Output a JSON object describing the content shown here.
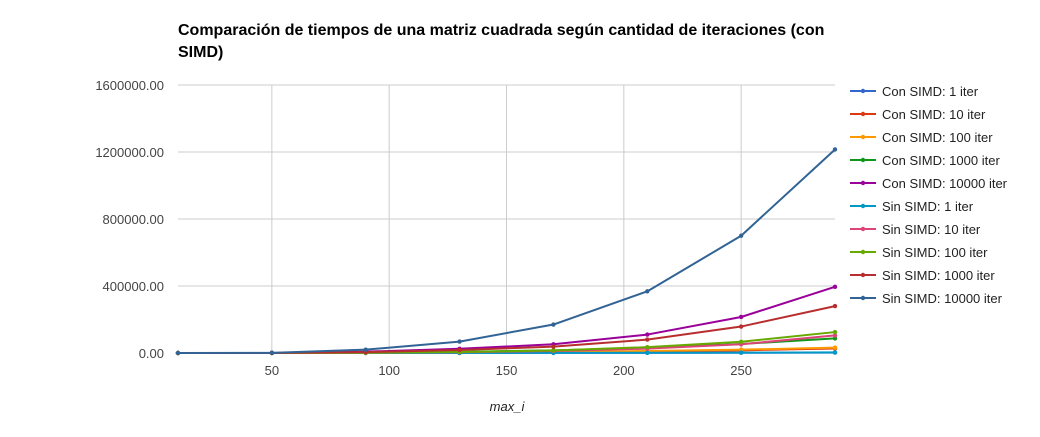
{
  "chart_data": {
    "type": "line",
    "title": "Comparación de tiempos de una matriz cuadrada según cantidad de iteraciones (con SIMD)",
    "xlabel": "max_i",
    "ylabel": "",
    "x": [
      10,
      50,
      90,
      130,
      170,
      210,
      250,
      290
    ],
    "xlim": [
      10,
      290
    ],
    "xticks": [
      "50",
      "100",
      "150",
      "200",
      "250"
    ],
    "xtick_values": [
      50,
      100,
      150,
      200,
      250
    ],
    "ylim": [
      0,
      1600000
    ],
    "yticks": [
      "0.00",
      "400000.00",
      "800000.00",
      "1200000.00",
      "1600000.00"
    ],
    "ytick_values": [
      0,
      400000,
      800000,
      1200000,
      1600000
    ],
    "grid": true,
    "legend_position": "right",
    "series": [
      {
        "name": "Con SIMD: 1 iter",
        "color": "#3366cc",
        "values": [
          0,
          10,
          60,
          200,
          500,
          900,
          1500,
          2500
        ]
      },
      {
        "name": "Con SIMD: 10 iter",
        "color": "#dc3912",
        "values": [
          0,
          50,
          500,
          1800,
          4500,
          9000,
          16000,
          27000
        ]
      },
      {
        "name": "Con SIMD: 100 iter",
        "color": "#ff9900",
        "values": [
          0,
          60,
          600,
          2500,
          6000,
          12000,
          20000,
          32000
        ]
      },
      {
        "name": "Con SIMD: 1000 iter",
        "color": "#109618",
        "values": [
          0,
          100,
          2000,
          7000,
          16000,
          31000,
          54000,
          87000
        ]
      },
      {
        "name": "Con SIMD: 10000 iter",
        "color": "#990099",
        "values": [
          0,
          300,
          8000,
          25000,
          52000,
          110000,
          215000,
          395000
        ]
      },
      {
        "name": "Sin SIMD: 1 iter",
        "color": "#0099c6",
        "values": [
          0,
          10,
          80,
          300,
          700,
          1300,
          2200,
          3500
        ]
      },
      {
        "name": "Sin SIMD: 10 iter",
        "color": "#dd4477",
        "values": [
          0,
          80,
          1200,
          4500,
          12000,
          26000,
          52000,
          105000
        ]
      },
      {
        "name": "Sin SIMD: 100 iter",
        "color": "#66aa00",
        "values": [
          0,
          100,
          1500,
          6000,
          15000,
          35000,
          67000,
          125000
        ]
      },
      {
        "name": "Sin SIMD: 1000 iter",
        "color": "#b82e2e",
        "values": [
          0,
          200,
          5000,
          18000,
          38000,
          80000,
          158000,
          280000
        ]
      },
      {
        "name": "Sin SIMD: 10000 iter",
        "color": "#316395",
        "values": [
          0,
          1000,
          20000,
          68000,
          170000,
          368000,
          700000,
          1215000
        ]
      }
    ]
  }
}
